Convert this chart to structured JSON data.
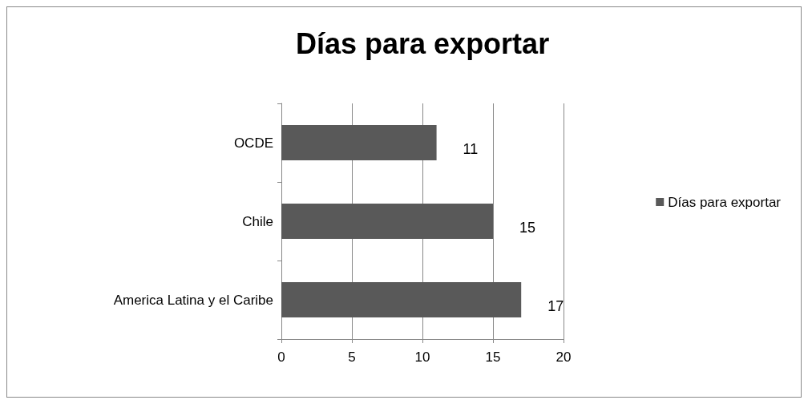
{
  "chart_data": {
    "type": "bar",
    "orientation": "horizontal",
    "title": "Días para exportar",
    "categories": [
      "OCDE",
      "Chile",
      "America Latina y el Caribe"
    ],
    "series": [
      {
        "name": "Días para exportar",
        "color": "#595959",
        "values": [
          11,
          15,
          17
        ]
      }
    ],
    "xlim": [
      0,
      20
    ],
    "xticks": [
      0,
      5,
      10,
      15,
      20
    ],
    "grid": "x",
    "legend": "right",
    "data_labels": true
  }
}
